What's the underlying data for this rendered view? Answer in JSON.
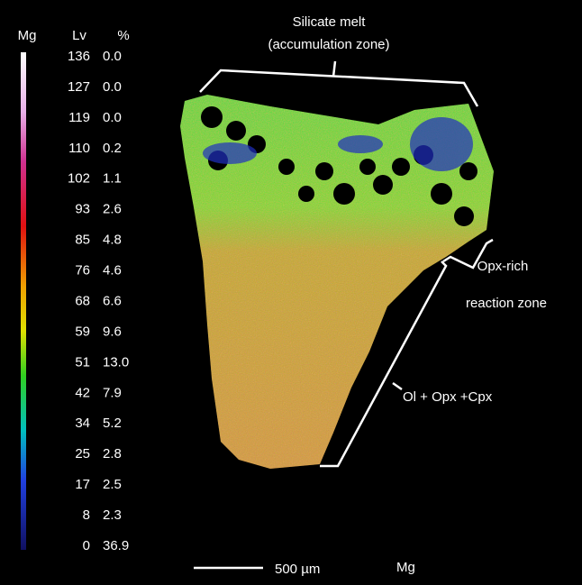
{
  "legend": {
    "headers": [
      "Mg",
      "Lv",
      "%"
    ],
    "rows": [
      [
        136,
        "0.0"
      ],
      [
        127,
        "0.0"
      ],
      [
        119,
        "0.0"
      ],
      [
        110,
        "0.2"
      ],
      [
        102,
        "1.1"
      ],
      [
        93,
        "2.6"
      ],
      [
        85,
        "4.8"
      ],
      [
        76,
        "4.6"
      ],
      [
        68,
        "6.6"
      ],
      [
        59,
        "9.6"
      ],
      [
        51,
        "13.0"
      ],
      [
        42,
        "7.9"
      ],
      [
        34,
        "5.2"
      ],
      [
        25,
        "2.8"
      ],
      [
        17,
        "2.5"
      ],
      [
        8,
        "2.3"
      ],
      [
        0,
        "36.9"
      ]
    ]
  },
  "annotations": {
    "silicate_melt": "Silicate melt",
    "accumulation_zone": "(accumulation zone)",
    "opx_rich": "Opx-rich",
    "reaction_zone": "reaction zone",
    "ol_opx_cpx": "Ol + Opx +Cpx"
  },
  "scale_bar": "500 µm",
  "element": "Mg"
}
